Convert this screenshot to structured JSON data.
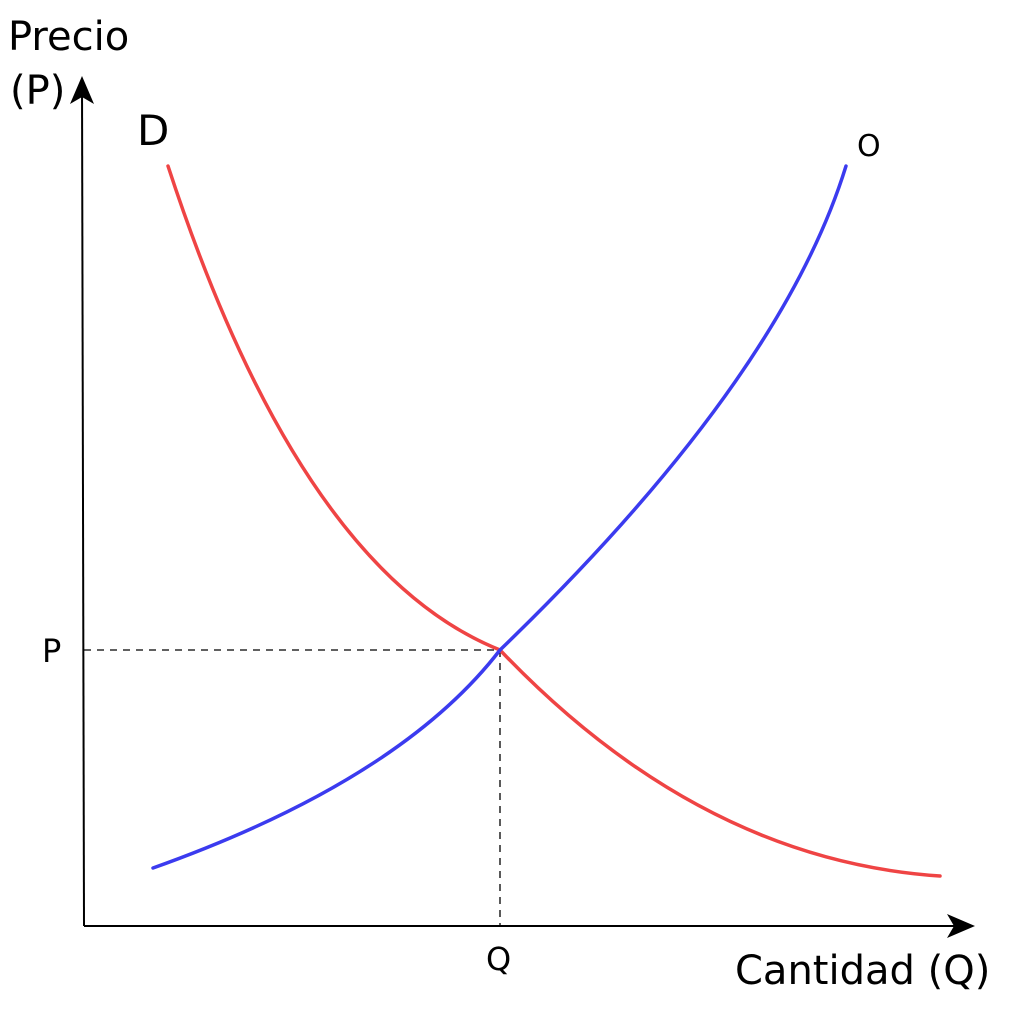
{
  "y_axis": {
    "label_line1": "Precio",
    "label_line2": "(P)"
  },
  "x_axis": {
    "label": "Cantidad (Q)"
  },
  "demand": {
    "label": "D",
    "color": "#ef4444"
  },
  "supply": {
    "label": "O",
    "color": "#3b3bef"
  },
  "equilibrium": {
    "price_label": "P",
    "quantity_label": "Q"
  },
  "colors": {
    "axis": "#000000",
    "guide": "#000000"
  }
}
